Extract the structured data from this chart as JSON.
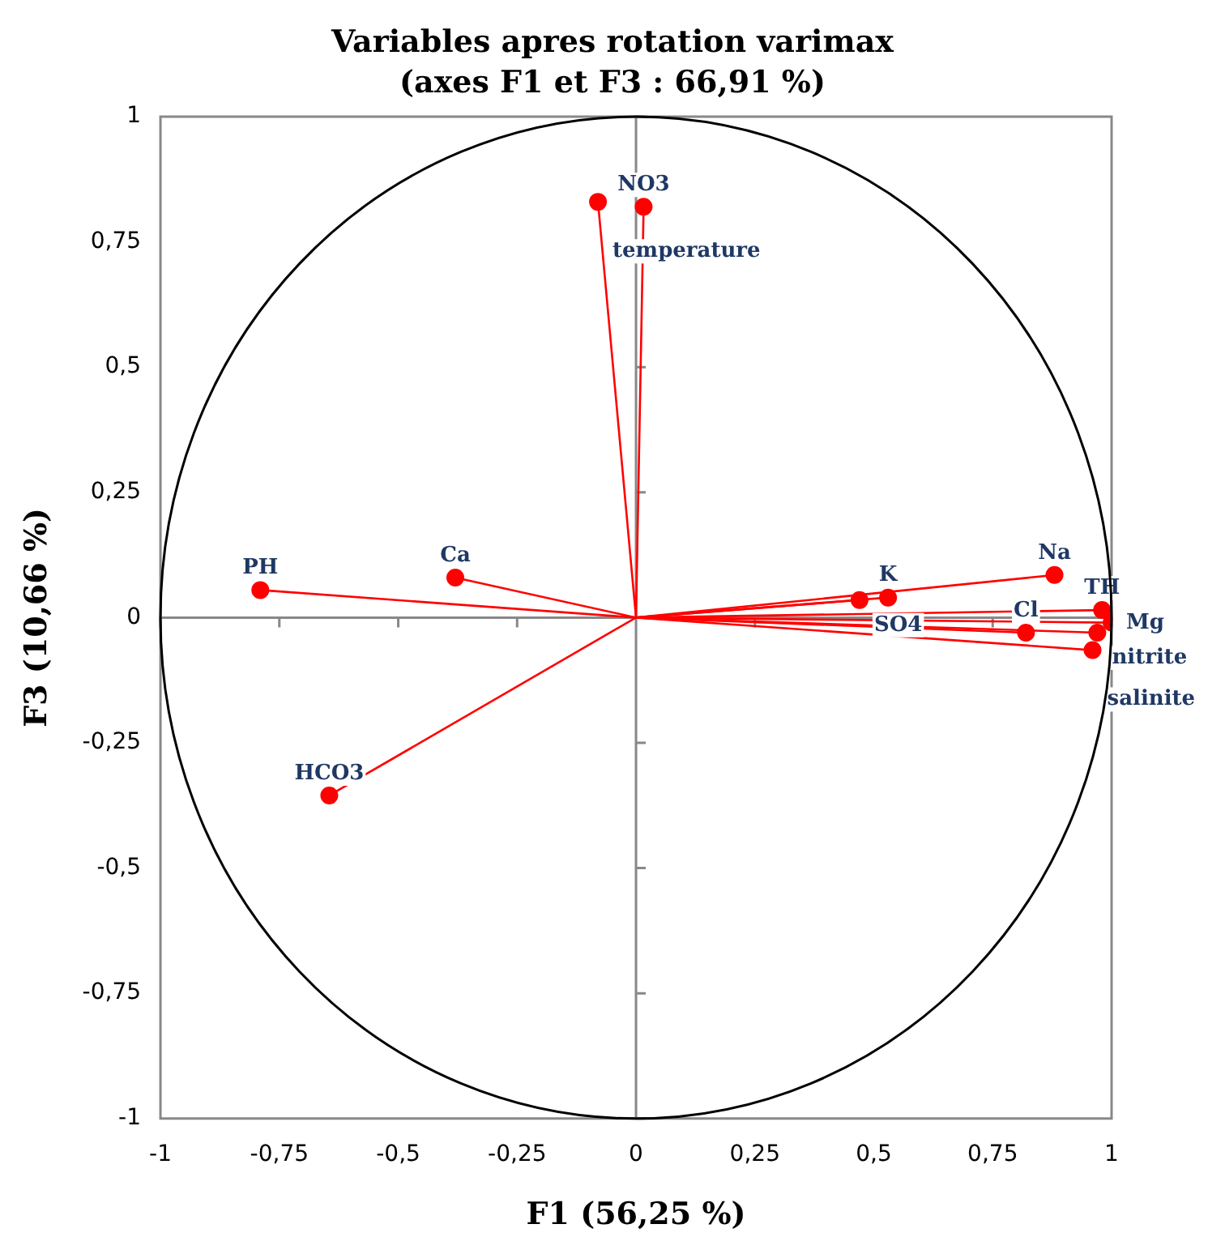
{
  "chart_data": {
    "type": "scatter",
    "title": "Variables apres rotation varimax",
    "subtitle": "(axes F1 et F3 : 66,91 %)",
    "xlabel": "F1 (56,25 %)",
    "ylabel": "F3 (10,66 %)",
    "x": [
      -0.08,
      0.016,
      -0.79,
      -0.38,
      -0.645,
      0.47,
      0.53,
      0.88,
      0.98,
      1.0,
      0.82,
      0.97,
      0.96
    ],
    "series": [
      {
        "color": "#ff0000",
        "values": [
          0.83,
          0.82,
          0.055,
          0.08,
          -0.355,
          0.035,
          0.04,
          0.085,
          0.015,
          -0.01,
          -0.03,
          -0.03,
          -0.065
        ]
      }
    ],
    "xlim": [
      -1,
      1
    ],
    "ylim": [
      -1,
      1
    ],
    "xticks": [
      {
        "value": -1,
        "label": "-1"
      },
      {
        "value": -0.75,
        "label": "-0,75"
      },
      {
        "value": -0.5,
        "label": "-0,5"
      },
      {
        "value": -0.25,
        "label": "-0,25"
      },
      {
        "value": 0,
        "label": "0"
      },
      {
        "value": 0.25,
        "label": "0,25"
      },
      {
        "value": 0.5,
        "label": "0,5"
      },
      {
        "value": 0.75,
        "label": "0,75"
      },
      {
        "value": 1,
        "label": "1"
      }
    ],
    "yticks": [
      {
        "value": -1,
        "label": "-1"
      },
      {
        "value": -0.75,
        "label": "-0,75"
      },
      {
        "value": -0.5,
        "label": "-0,5"
      },
      {
        "value": -0.25,
        "label": "-0,25"
      },
      {
        "value": 0,
        "label": "0"
      },
      {
        "value": 0.25,
        "label": "0,25"
      },
      {
        "value": 0.5,
        "label": "0,5"
      },
      {
        "value": 0.75,
        "label": "0,75"
      },
      {
        "value": 1,
        "label": "1"
      }
    ],
    "marker": "circle",
    "legend": false,
    "annotations": [
      {
        "text": "temperature",
        "x": -0.08,
        "y": 0.83
      },
      {
        "text": "NO3",
        "x": 0.016,
        "y": 0.82
      },
      {
        "text": "PH",
        "x": -0.79,
        "y": 0.055
      },
      {
        "text": "Ca",
        "x": -0.38,
        "y": 0.08
      },
      {
        "text": "HCO3",
        "x": -0.645,
        "y": -0.355
      },
      {
        "text": "SO4",
        "x": 0.47,
        "y": 0.035
      },
      {
        "text": "K",
        "x": 0.53,
        "y": 0.04
      },
      {
        "text": "Na",
        "x": 0.88,
        "y": 0.085
      },
      {
        "text": "TH",
        "x": 0.98,
        "y": 0.015
      },
      {
        "text": "Mg",
        "x": 1.0,
        "y": -0.01
      },
      {
        "text": "Cl",
        "x": 0.82,
        "y": -0.03
      },
      {
        "text": "nitrite",
        "x": 0.97,
        "y": -0.03
      },
      {
        "text": "salinite",
        "x": 0.96,
        "y": -0.065
      }
    ]
  }
}
